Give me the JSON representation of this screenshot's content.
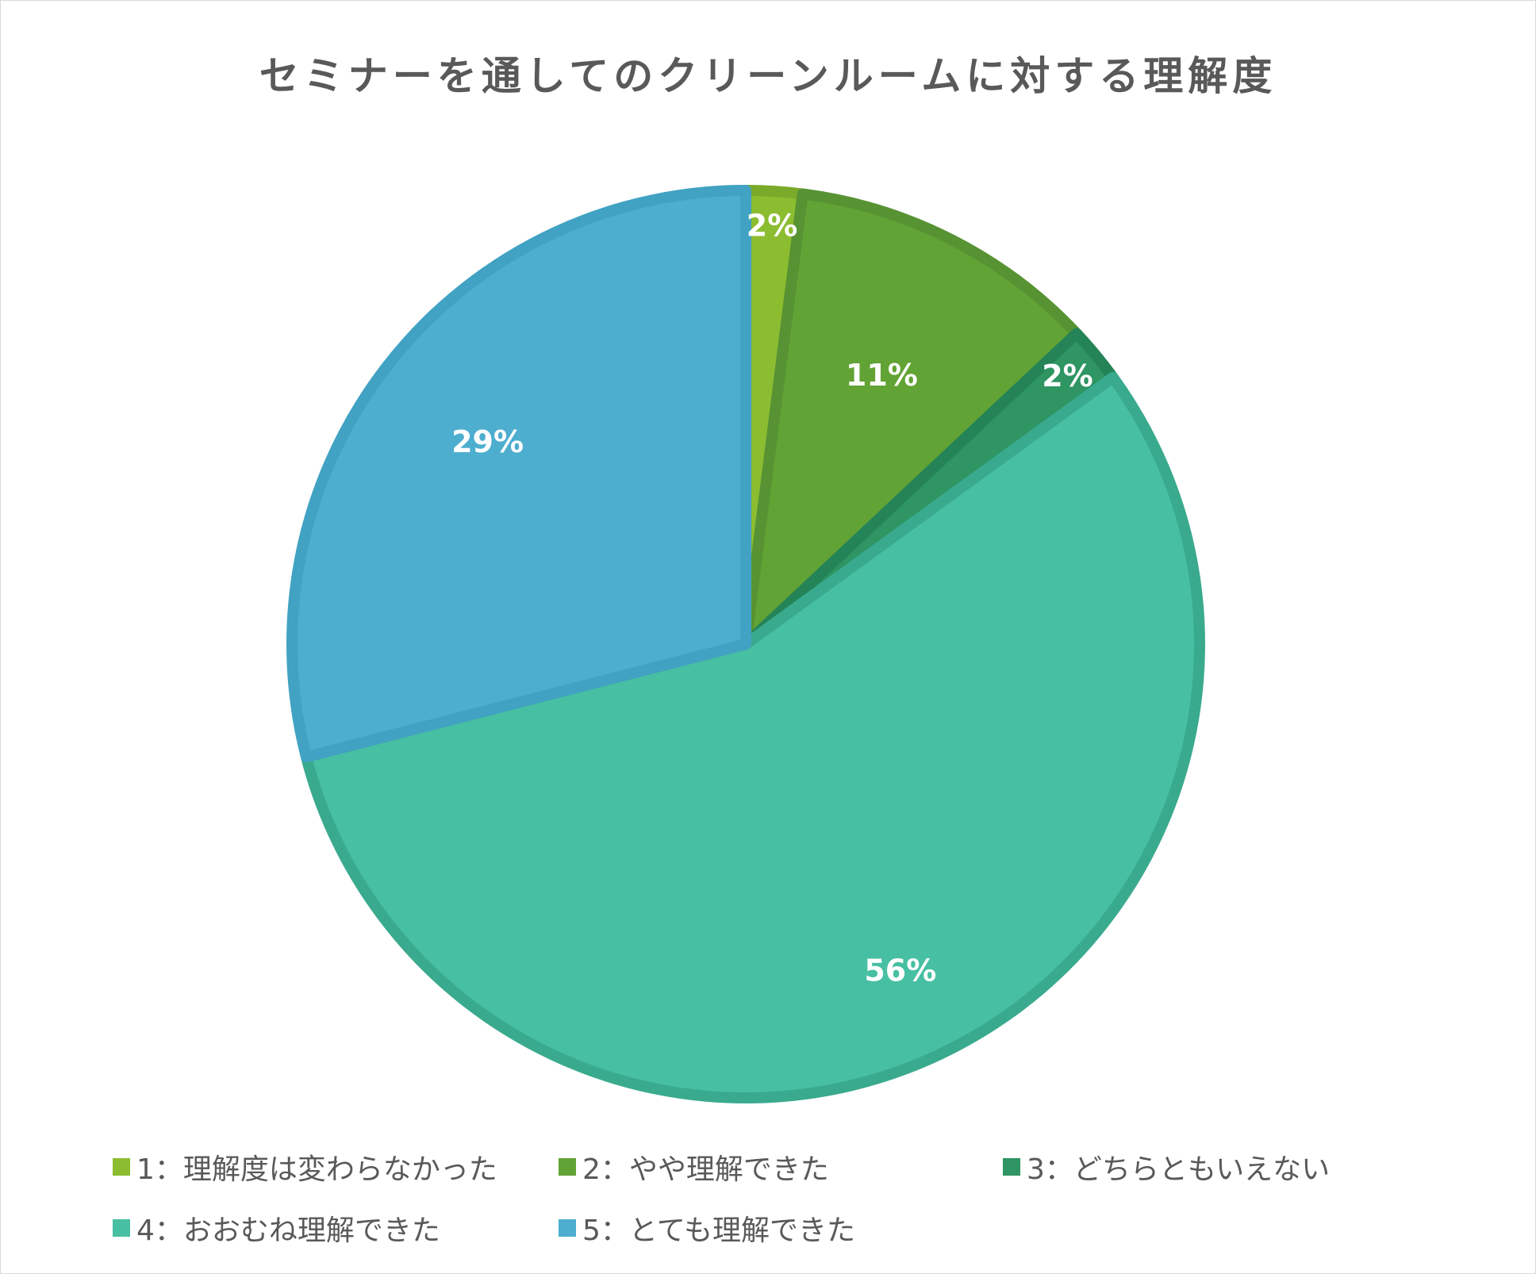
{
  "chart_data": {
    "type": "pie",
    "title": "セミナーを通してのクリーンルームに対する理解度",
    "series": [
      {
        "values": [
          2,
          11,
          2,
          56,
          29
        ]
      }
    ],
    "categories": [
      "1：理解度は変わらなかった",
      "2：やや理解できた",
      "3：どちらともいえない",
      "4：おおむね理解できた",
      "5：とても理解できた"
    ],
    "data_labels": [
      "2%",
      "11%",
      "2%",
      "56%",
      "29%"
    ],
    "colors": [
      "#8cbd31",
      "#62a335",
      "#2e9563",
      "#47bfa2",
      "#4daecf"
    ],
    "border_colors": [
      "#7aaa2a",
      "#579333",
      "#248457",
      "#3aaa8e",
      "#41a2c3"
    ],
    "legend_position": "bottom"
  }
}
